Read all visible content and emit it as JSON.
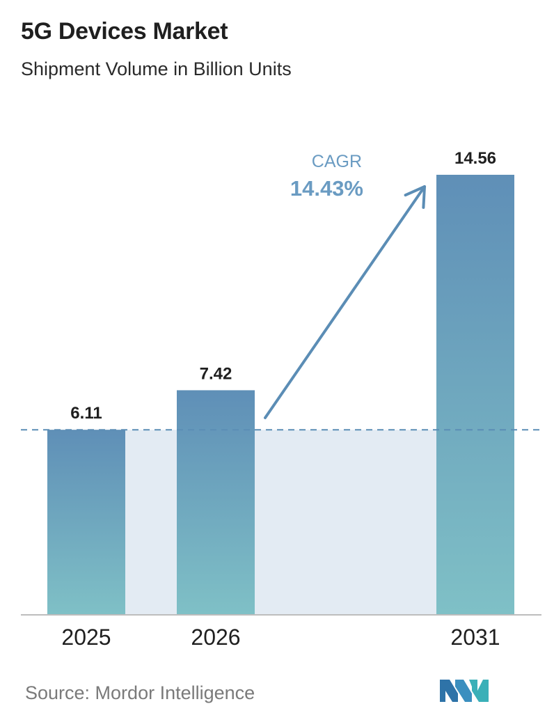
{
  "header": {
    "title": "5G Devices Market",
    "subtitle": "Shipment Volume in Billion Units"
  },
  "chart_data": {
    "type": "bar",
    "title": "5G Devices Market",
    "subtitle": "Shipment Volume in Billion Units",
    "categories": [
      "2025",
      "2026",
      "2031"
    ],
    "values": [
      6.11,
      7.42,
      14.56
    ],
    "value_labels": [
      "6.11",
      "7.42",
      "14.56"
    ],
    "xlabel": "",
    "ylabel": "",
    "ylim": [
      0,
      14.56
    ],
    "grid": false,
    "legend": "none",
    "reference_line": {
      "value": 6.11,
      "style": "dashed"
    },
    "annotation": {
      "label": "CAGR",
      "value": "14.43%"
    },
    "colors": {
      "bar_top": "#5f8fb7",
      "bar_bottom": "#7fc0c6",
      "band": "#e3ebf3",
      "arrow": "#5b8db5",
      "cagr_text": "#6a9bc2",
      "dashed_line": "#5b8db5",
      "axis": "#bdbdbd"
    }
  },
  "footer": {
    "source": "Source:  Mordor Intelligence"
  },
  "logo": {
    "icon": "mordor-intelligence-logo-icon",
    "color_left": "#2e73a8",
    "color_right": "#3ab0b8"
  }
}
